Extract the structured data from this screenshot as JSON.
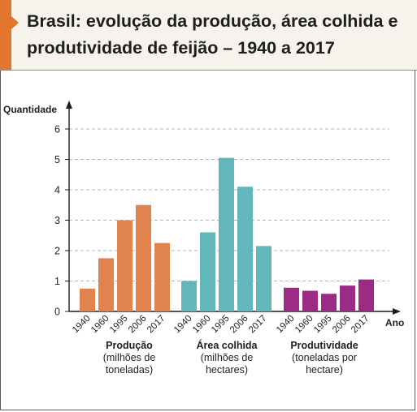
{
  "title": "Brasil: evolução da produção, área colhida e produtividade de feijão – 1940 a 2017",
  "colors": {
    "accent": "#e4752e",
    "producao": "#e0834e",
    "area": "#62b7bb",
    "produtividade": "#9b2b85"
  },
  "chart_data": {
    "type": "bar",
    "ylabel": "Quantidade",
    "xlabel": "Ano",
    "ylim": [
      0,
      6
    ],
    "yticks": [
      "0",
      "1",
      "2",
      "3",
      "4",
      "5",
      "6"
    ],
    "grid": "horizontal dashed",
    "groups": [
      {
        "name": "Produção",
        "unit": "(milhões de toneladas)",
        "categories": [
          "1940",
          "1960",
          "1995",
          "2006",
          "2017"
        ],
        "values": [
          0.75,
          1.75,
          3.0,
          3.5,
          2.25
        ],
        "color": "#e0834e"
      },
      {
        "name": "Área colhida",
        "unit": "(milhões de hectares)",
        "categories": [
          "1940",
          "1960",
          "1995",
          "2006",
          "2017"
        ],
        "values": [
          1.0,
          2.6,
          5.05,
          4.1,
          2.15
        ],
        "color": "#62b7bb"
      },
      {
        "name": "Produtividade",
        "unit": "(toneladas por hectare)",
        "categories": [
          "1940",
          "1960",
          "1995",
          "2006",
          "2017"
        ],
        "values": [
          0.78,
          0.68,
          0.58,
          0.85,
          1.05
        ],
        "color": "#9b2b85"
      }
    ]
  }
}
